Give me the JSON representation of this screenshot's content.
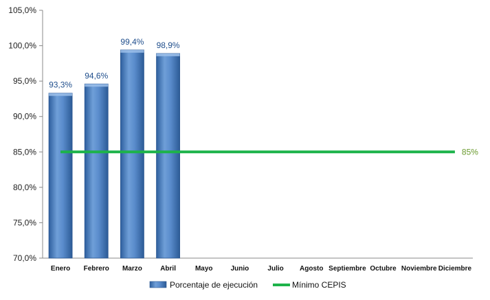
{
  "chart_data": {
    "type": "bar",
    "categories": [
      "Enero",
      "Febrero",
      "Marzo",
      "Abril",
      "Mayo",
      "Junio",
      "Julio",
      "Agosto",
      "Septiembre",
      "Octubre",
      "Noviembre",
      "Diciembre"
    ],
    "series": [
      {
        "name": "Porcentaje de ejecución",
        "type": "bar",
        "values": [
          93.3,
          94.6,
          99.4,
          98.9,
          null,
          null,
          null,
          null,
          null,
          null,
          null,
          null
        ],
        "data_labels": [
          "93,3%",
          "94,6%",
          "99,4%",
          "98,9%"
        ],
        "color": "#4a7fc1"
      },
      {
        "name": "Mínimo CEPIS",
        "type": "line",
        "values": [
          85,
          85,
          85,
          85,
          85,
          85,
          85,
          85,
          85,
          85,
          85,
          85
        ],
        "end_label": "85%",
        "color": "#1db34a"
      }
    ],
    "yticks": [
      "70,0%",
      "75,0%",
      "80,0%",
      "85,0%",
      "90,0%",
      "95,0%",
      "100,0%",
      "105,0%"
    ],
    "ylim": [
      70,
      105
    ],
    "ystep": 5,
    "grid": false,
    "legend_position": "bottom",
    "title": "",
    "xlabel": "",
    "ylabel": ""
  }
}
